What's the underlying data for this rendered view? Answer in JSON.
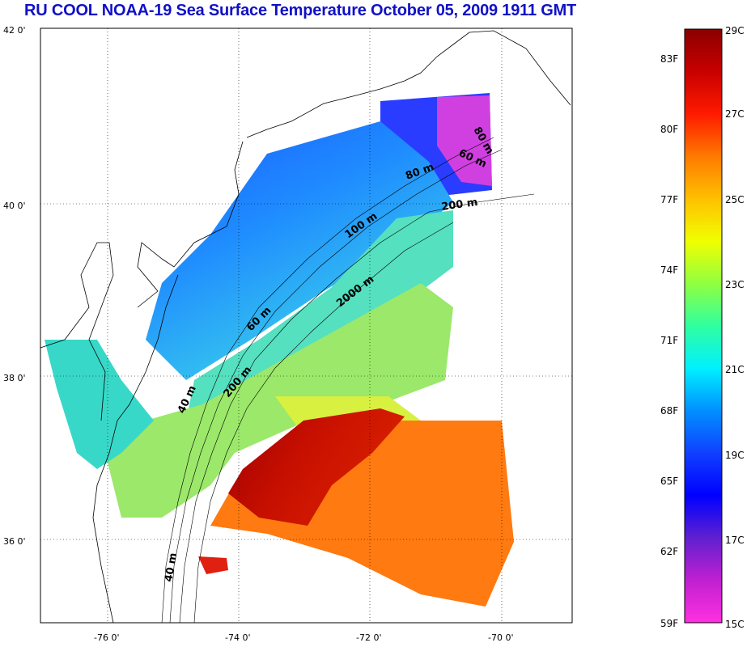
{
  "title": "RU COOL  NOAA-19 Sea Surface Temperature October 05, 2009 1911 GMT",
  "axes": {
    "x_labels": [
      "-76 0'",
      "-74 0'",
      "-72 0'",
      "-70 0'"
    ],
    "y_labels": [
      "42 0'",
      "40 0'",
      "38 0'",
      "36 0'"
    ]
  },
  "contour_labels": [
    "80 m",
    "60 m",
    "80 m",
    "200 m",
    "100 m",
    "2000 m",
    "60 m",
    "200 m",
    "40 m",
    "40 m"
  ],
  "colorbar": {
    "fahrenheit_labels": [
      "83F",
      "80F",
      "77F",
      "74F",
      "71F",
      "68F",
      "65F",
      "62F",
      "59F"
    ],
    "celsius_labels": [
      "29C",
      "27C",
      "25C",
      "23C",
      "21C",
      "19C",
      "17C",
      "15C"
    ],
    "gradient_colors": [
      "#8b0000",
      "#c80000",
      "#ff1a00",
      "#ff7a00",
      "#ffc000",
      "#f0ff00",
      "#90ff40",
      "#30ffa0",
      "#00f0ff",
      "#0090ff",
      "#1040ff",
      "#0000ff",
      "#6020d0",
      "#c020d0",
      "#ff30e0"
    ]
  },
  "colors": {
    "title": "#1010c8",
    "land_outline": "#000000",
    "grid": "#000000"
  }
}
